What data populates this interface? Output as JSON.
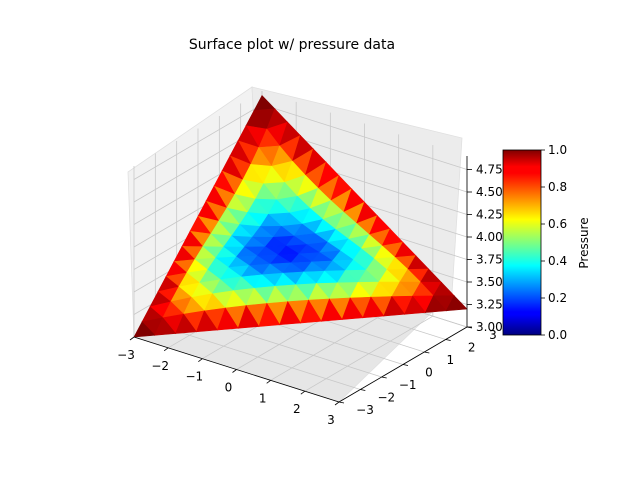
{
  "chart_data": {
    "type": "surface",
    "title": "Surface plot w/ pressure data",
    "xlabel": "",
    "ylabel": "",
    "zlabel": "",
    "x_ticks": [
      -3,
      -2,
      -1,
      0,
      1,
      2,
      3
    ],
    "y_ticks": [
      -3,
      -2,
      -1,
      0,
      1,
      2,
      3
    ],
    "z_ticks": [
      "3.00",
      "3.25",
      "3.50",
      "3.75",
      "4.00",
      "4.25",
      "4.50",
      "4.75"
    ],
    "xlim": [
      -3,
      3
    ],
    "ylim": [
      -3,
      3
    ],
    "zlim": [
      3.0,
      4.9
    ],
    "surface": {
      "shape": "triangular saddle spanning corners (-3,-3), (3,3) and a high corner near (-3,3)",
      "corners": [
        {
          "x": -3,
          "y": -3,
          "z": 3.0
        },
        {
          "x": -3,
          "y": 3,
          "z": 4.85
        },
        {
          "x": 3,
          "y": 3,
          "z": 3.2
        },
        {
          "x": 1,
          "y": 1,
          "z": 3.6
        }
      ],
      "pressure_pattern": "high (near 1.0) along the edges, low (near 0.2) in the centre"
    },
    "colorbar": {
      "label": "Pressure",
      "colormap": "jet",
      "range": [
        0.0,
        1.0
      ],
      "ticks": [
        "0.0",
        "0.2",
        "0.4",
        "0.6",
        "0.8",
        "1.0"
      ]
    },
    "grid": true
  }
}
